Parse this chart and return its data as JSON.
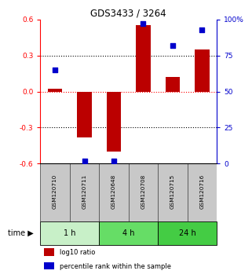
{
  "title": "GDS3433 / 3264",
  "samples": [
    "GSM120710",
    "GSM120711",
    "GSM120648",
    "GSM120708",
    "GSM120715",
    "GSM120716"
  ],
  "log10_ratio": [
    0.02,
    -0.38,
    -0.5,
    0.55,
    0.12,
    0.35
  ],
  "percentile_rank": [
    65,
    2,
    2,
    97,
    82,
    93
  ],
  "ylim_left": [
    -0.6,
    0.6
  ],
  "ylim_right": [
    0,
    100
  ],
  "yticks_left": [
    -0.6,
    -0.3,
    0.0,
    0.3,
    0.6
  ],
  "yticks_right": [
    0,
    25,
    50,
    75,
    100
  ],
  "ytick_labels_right": [
    "0",
    "25",
    "50",
    "75",
    "100%"
  ],
  "time_groups": [
    {
      "label": "1 h",
      "start": 0,
      "end": 2,
      "color": "#c8f0c8"
    },
    {
      "label": "4 h",
      "start": 2,
      "end": 4,
      "color": "#66dd66"
    },
    {
      "label": "24 h",
      "start": 4,
      "end": 6,
      "color": "#44cc44"
    }
  ],
  "bar_color": "#bb0000",
  "dot_color": "#0000cc",
  "bar_width": 0.5,
  "sample_bg_color": "#c8c8c8",
  "sample_border_color": "#555555",
  "legend_items": [
    {
      "color": "#bb0000",
      "label": "log10 ratio"
    },
    {
      "color": "#0000cc",
      "label": "percentile rank within the sample"
    }
  ]
}
